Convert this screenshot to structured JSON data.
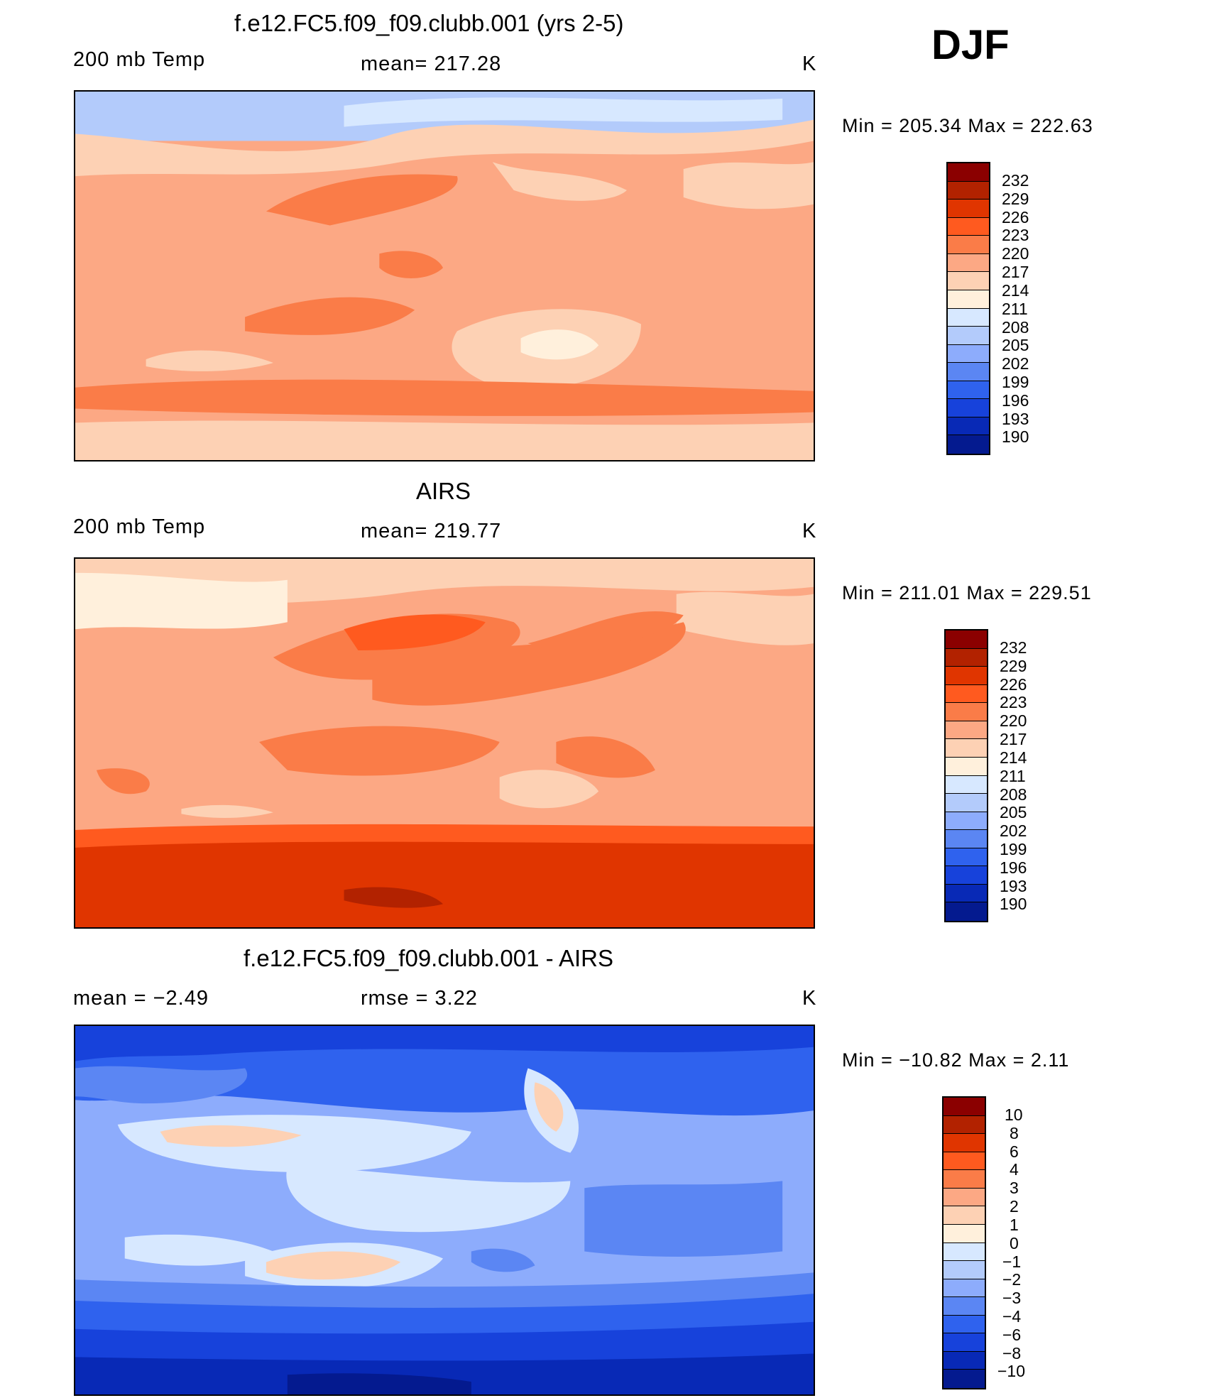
{
  "season": "DJF",
  "unit": "K",
  "panels": [
    {
      "title": "f.e12.FC5.f09_f09.clubb.001 (yrs 2-5)",
      "left_label": "200 mb Temp",
      "mid_label": "mean=  217.28",
      "right_label": "K",
      "minmax": "Min  =  205.34  Max  =  222.63",
      "legend_labels": [
        "232",
        "229",
        "226",
        "223",
        "220",
        "217",
        "214",
        "211",
        "208",
        "205",
        "202",
        "199",
        "196",
        "193",
        "190"
      ]
    },
    {
      "title": "AIRS",
      "left_label": "200 mb Temp",
      "mid_label": "mean=  219.77",
      "right_label": "K",
      "minmax": "Min  =  211.01  Max  =  229.51",
      "legend_labels": [
        "232",
        "229",
        "226",
        "223",
        "220",
        "217",
        "214",
        "211",
        "208",
        "205",
        "202",
        "199",
        "196",
        "193",
        "190"
      ]
    },
    {
      "title": "f.e12.FC5.f09_f09.clubb.001 - AIRS",
      "left_label": "mean  =     −2.49",
      "mid_label": "rmse  =      3.22",
      "right_label": "K",
      "minmax": "Min  =  −10.82  Max  =       2.11",
      "legend_labels": [
        "10",
        "8",
        "6",
        "4",
        "3",
        "2",
        "1",
        "0",
        "−1",
        "−2",
        "−3",
        "−4",
        "−6",
        "−8",
        "−10"
      ]
    }
  ],
  "colors": {
    "temp_scale": [
      "#8b0000",
      "#b22200",
      "#e03500",
      "#ff5a1f",
      "#fa7c48",
      "#fca884",
      "#fdd1b4",
      "#fff0dc",
      "#d7e8ff",
      "#b3cbfb",
      "#8dacfc",
      "#5b86f3",
      "#2f62ee",
      "#1742db",
      "#0829b6",
      "#041a8f"
    ],
    "diff_scale": [
      "#8b0000",
      "#b22200",
      "#e03500",
      "#ff5a1f",
      "#fa7c48",
      "#fca884",
      "#fdd1b4",
      "#fff0dc",
      "#d7e8ff",
      "#b3cbfb",
      "#8dacfc",
      "#5b86f3",
      "#2f62ee",
      "#1742db",
      "#0829b6",
      "#041a8f"
    ]
  }
}
